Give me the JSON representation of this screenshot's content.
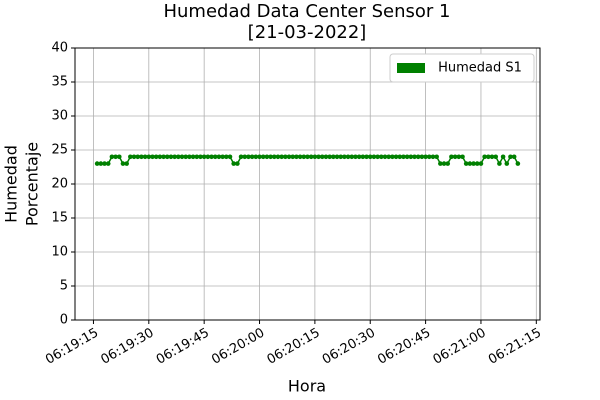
{
  "chart_data": {
    "type": "line",
    "title": "Humedad Data Center Sensor 1",
    "subtitle": "[21-03-2022]",
    "xlabel": "Hora",
    "ylabel": [
      "Humedad",
      "Porcentaje"
    ],
    "x": [
      "06:19:16",
      "06:19:17",
      "06:19:18",
      "06:19:19",
      "06:19:20",
      "06:19:21",
      "06:19:22",
      "06:19:23",
      "06:19:24",
      "06:19:25",
      "06:19:26",
      "06:19:27",
      "06:19:28",
      "06:19:29",
      "06:19:30",
      "06:19:31",
      "06:19:32",
      "06:19:33",
      "06:19:34",
      "06:19:35",
      "06:19:36",
      "06:19:37",
      "06:19:38",
      "06:19:39",
      "06:19:40",
      "06:19:41",
      "06:19:42",
      "06:19:43",
      "06:19:44",
      "06:19:45",
      "06:19:46",
      "06:19:47",
      "06:19:48",
      "06:19:49",
      "06:19:50",
      "06:19:51",
      "06:19:52",
      "06:19:53",
      "06:19:54",
      "06:19:55",
      "06:19:56",
      "06:19:57",
      "06:19:58",
      "06:19:59",
      "06:20:00",
      "06:20:01",
      "06:20:02",
      "06:20:03",
      "06:20:04",
      "06:20:05",
      "06:20:06",
      "06:20:07",
      "06:20:08",
      "06:20:09",
      "06:20:10",
      "06:20:11",
      "06:20:12",
      "06:20:13",
      "06:20:14",
      "06:20:15",
      "06:20:16",
      "06:20:17",
      "06:20:18",
      "06:20:19",
      "06:20:20",
      "06:20:21",
      "06:20:22",
      "06:20:23",
      "06:20:24",
      "06:20:25",
      "06:20:26",
      "06:20:27",
      "06:20:28",
      "06:20:29",
      "06:20:30",
      "06:20:31",
      "06:20:32",
      "06:20:33",
      "06:20:34",
      "06:20:35",
      "06:20:36",
      "06:20:37",
      "06:20:38",
      "06:20:39",
      "06:20:40",
      "06:20:41",
      "06:20:42",
      "06:20:43",
      "06:20:44",
      "06:20:45",
      "06:20:46",
      "06:20:47",
      "06:20:48",
      "06:20:49",
      "06:20:50",
      "06:20:51",
      "06:20:52",
      "06:20:53",
      "06:20:54",
      "06:20:55",
      "06:20:56",
      "06:20:57",
      "06:20:58",
      "06:20:59",
      "06:21:00",
      "06:21:01",
      "06:21:02",
      "06:21:03",
      "06:21:04",
      "06:21:05",
      "06:21:06",
      "06:21:07",
      "06:21:08",
      "06:21:09",
      "06:21:10"
    ],
    "series": [
      {
        "name": " Humedad S1",
        "color": "#008000",
        "values": [
          23,
          23,
          23,
          23,
          24,
          24,
          24,
          23,
          23,
          24,
          24,
          24,
          24,
          24,
          24,
          24,
          24,
          24,
          24,
          24,
          24,
          24,
          24,
          24,
          24,
          24,
          24,
          24,
          24,
          24,
          24,
          24,
          24,
          24,
          24,
          24,
          24,
          23,
          23,
          24,
          24,
          24,
          24,
          24,
          24,
          24,
          24,
          24,
          24,
          24,
          24,
          24,
          24,
          24,
          24,
          24,
          24,
          24,
          24,
          24,
          24,
          24,
          24,
          24,
          24,
          24,
          24,
          24,
          24,
          24,
          24,
          24,
          24,
          24,
          24,
          24,
          24,
          24,
          24,
          24,
          24,
          24,
          24,
          24,
          24,
          24,
          24,
          24,
          24,
          24,
          24,
          24,
          24,
          23,
          23,
          23,
          24,
          24,
          24,
          24,
          23,
          23,
          23,
          23,
          23,
          24,
          24,
          24,
          24,
          23,
          24,
          23,
          24,
          24,
          23
        ]
      }
    ],
    "xlim": [
      "06:19:10",
      "06:21:16"
    ],
    "xticks": [
      "06:19:15",
      "06:19:30",
      "06:19:45",
      "06:20:00",
      "06:20:15",
      "06:20:30",
      "06:20:45",
      "06:21:00",
      "06:21:15"
    ],
    "ylim": [
      0,
      40
    ],
    "yticks": [
      0,
      5,
      10,
      15,
      20,
      25,
      30,
      35,
      40
    ],
    "grid": true,
    "legend": "upper right"
  }
}
